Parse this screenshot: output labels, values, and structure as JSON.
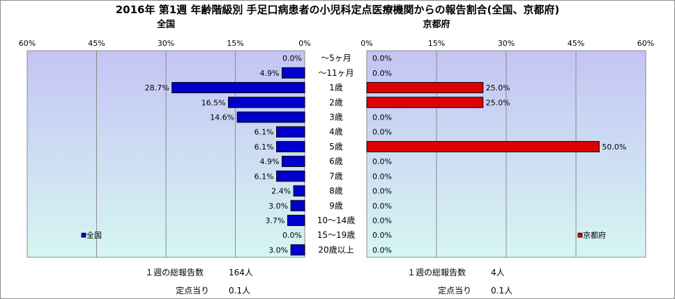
{
  "title": "2016年 第1週 年齢階級別 手足口病患者の小児科定点医療機関からの報告割合(全国、京都府)",
  "colors": {
    "national": "#0000cc",
    "kyoto": "#dd0000",
    "plot_bg_top": "#c4c4f4",
    "plot_bg_bottom": "#d6f6f2",
    "grid": "#8a8a8a"
  },
  "chart_data": [
    {
      "type": "bar",
      "orientation": "horizontal",
      "direction": "right-to-left",
      "title": "全国",
      "legend": {
        "entries": [
          "全国"
        ],
        "position": "bottom-left"
      },
      "xlim": [
        0,
        60
      ],
      "xticks": [
        "60%",
        "45%",
        "30%",
        "15%",
        "0%"
      ],
      "xtick_values": [
        60,
        45,
        30,
        15,
        0
      ],
      "grid": true,
      "categories": [
        "～5ヶ月",
        "～11ヶ月",
        "1歳",
        "2歳",
        "3歳",
        "4歳",
        "5歳",
        "6歳",
        "7歳",
        "8歳",
        "9歳",
        "10～14歳",
        "15～19歳",
        "20歳以上"
      ],
      "series": [
        {
          "name": "全国",
          "values": [
            0.0,
            4.9,
            28.7,
            16.5,
            14.6,
            6.1,
            6.1,
            4.9,
            6.1,
            2.4,
            3.0,
            3.7,
            0.0,
            3.0
          ],
          "labels": [
            "0.0%",
            "4.9%",
            "28.7%",
            "16.5%",
            "14.6%",
            "6.1%",
            "6.1%",
            "4.9%",
            "6.1%",
            "2.4%",
            "3.0%",
            "3.7%",
            "0.0%",
            "3.0%"
          ]
        }
      ]
    },
    {
      "type": "bar",
      "orientation": "horizontal",
      "direction": "left-to-right",
      "title": "京都府",
      "legend": {
        "entries": [
          "京都府"
        ],
        "position": "bottom-right"
      },
      "xlim": [
        0,
        60
      ],
      "xticks": [
        "0%",
        "15%",
        "30%",
        "45%",
        "60%"
      ],
      "xtick_values": [
        0,
        15,
        30,
        45,
        60
      ],
      "grid": true,
      "categories": [
        "～5ヶ月",
        "～11ヶ月",
        "1歳",
        "2歳",
        "3歳",
        "4歳",
        "5歳",
        "6歳",
        "7歳",
        "8歳",
        "9歳",
        "10～14歳",
        "15～19歳",
        "20歳以上"
      ],
      "series": [
        {
          "name": "京都府",
          "values": [
            0.0,
            0.0,
            25.0,
            25.0,
            0.0,
            0.0,
            50.0,
            0.0,
            0.0,
            0.0,
            0.0,
            0.0,
            0.0,
            0.0
          ],
          "labels": [
            "0.0%",
            "0.0%",
            "25.0%",
            "25.0%",
            "0.0%",
            "0.0%",
            "50.0%",
            "0.0%",
            "0.0%",
            "0.0%",
            "0.0%",
            "0.0%",
            "0.0%",
            "0.0%"
          ]
        }
      ]
    }
  ],
  "summary": {
    "national": {
      "reports_label": "１週の総報告数",
      "reports_value": "164人",
      "per_sentinel_label": "定点当り",
      "per_sentinel_value": "0.1人"
    },
    "kyoto": {
      "reports_label": "１週の総報告数",
      "reports_value": "4人",
      "per_sentinel_label": "定点当り",
      "per_sentinel_value": "0.1人"
    }
  }
}
